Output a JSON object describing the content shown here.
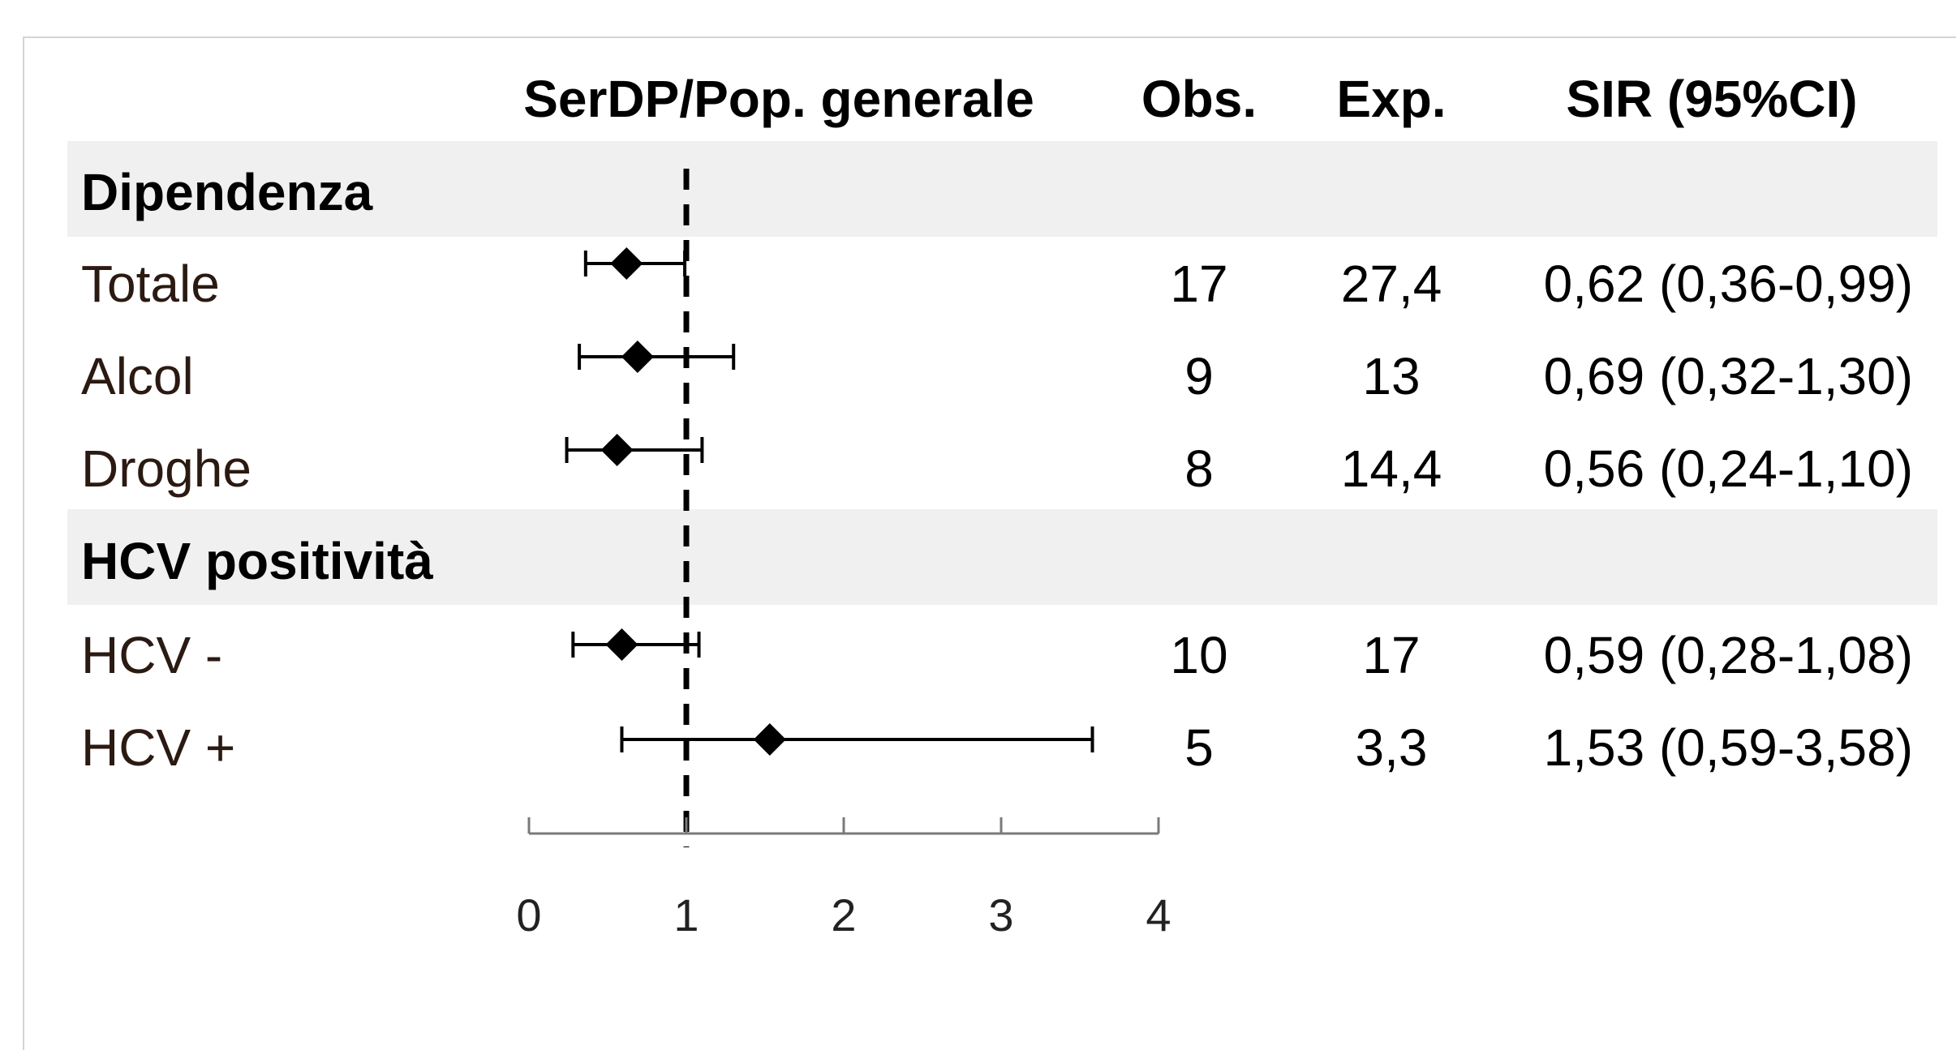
{
  "headers": {
    "plot": "SerDP/Pop. generale",
    "obs": "Obs.",
    "exp": "Exp.",
    "sir": "SIR (95%CI)"
  },
  "groups": [
    {
      "label": "Dipendenza",
      "rows": [
        {
          "label": "Totale",
          "obs": "17",
          "exp": "27,4",
          "sir": "0,62 (0,36-0,99)"
        },
        {
          "label": "Alcol",
          "obs": "9",
          "exp": "13",
          "sir": "0,69 (0,32-1,30)"
        },
        {
          "label": "Droghe",
          "obs": "8",
          "exp": "14,4",
          "sir": "0,56 (0,24-1,10)"
        }
      ]
    },
    {
      "label": "HCV positività",
      "rows": [
        {
          "label": "HCV -",
          "obs": "10",
          "exp": "17",
          "sir": "0,59 (0,28-1,08)"
        },
        {
          "label": "HCV +",
          "obs": "5",
          "exp": "3,3",
          "sir": "1,53 (0,59-3,58)"
        }
      ]
    }
  ],
  "chart_data": {
    "type": "forest",
    "xlim": [
      0,
      4
    ],
    "x_ticks": [
      "0",
      "1",
      "2",
      "3",
      "4"
    ],
    "reference_line": 1,
    "series": [
      {
        "label": "Totale",
        "sir": 0.62,
        "lower": 0.36,
        "upper": 0.99
      },
      {
        "label": "Alcol",
        "sir": 0.69,
        "lower": 0.32,
        "upper": 1.3
      },
      {
        "label": "Droghe",
        "sir": 0.56,
        "lower": 0.24,
        "upper": 1.1
      },
      {
        "label": "HCV -",
        "sir": 0.59,
        "lower": 0.28,
        "upper": 1.08
      },
      {
        "label": "HCV +",
        "sir": 1.53,
        "lower": 0.59,
        "upper": 3.58
      }
    ]
  }
}
